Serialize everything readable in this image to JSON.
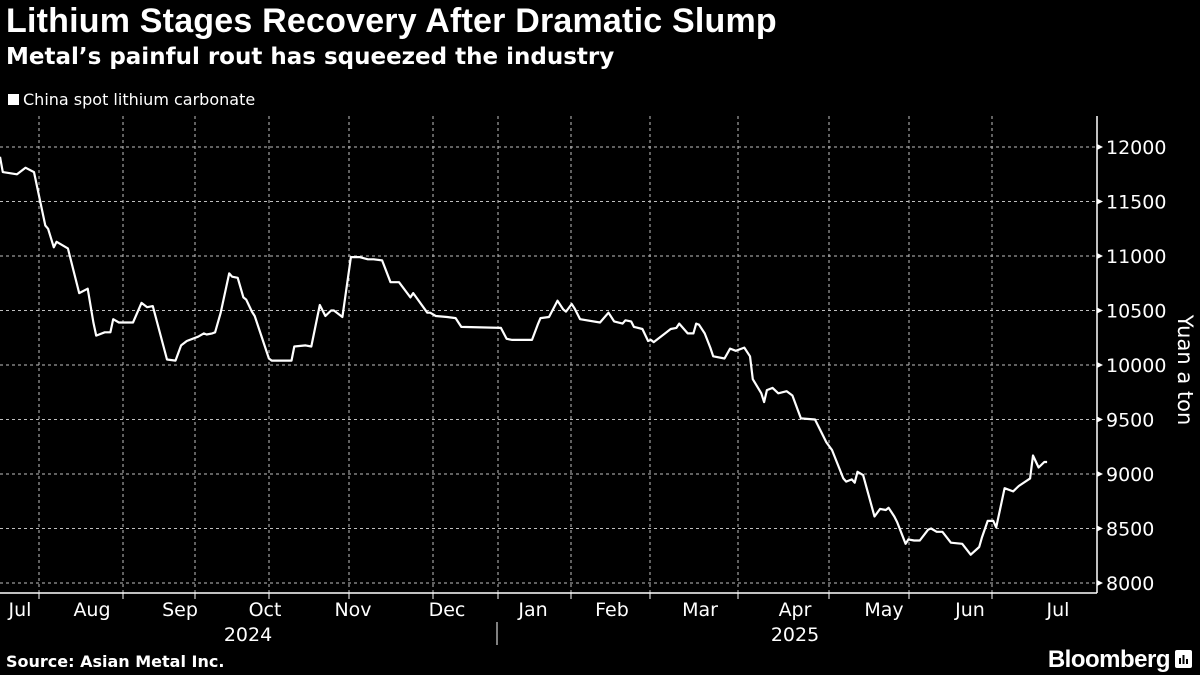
{
  "header": {
    "title": "Lithium Stages Recovery After Dramatic Slump",
    "subtitle": "Metal’s painful rout has squeezed the industry"
  },
  "footer": {
    "source": "Source: Asian Metal Inc.",
    "logo": "Bloomberg",
    "logo_icon": "chart-bubble-icon"
  },
  "colors": {
    "background": "#000000",
    "line": "#ffffff",
    "grid": "#bfbfbf"
  },
  "chart_data": {
    "type": "line",
    "title": "Lithium Stages Recovery After Dramatic Slump",
    "subtitle": "Metal’s painful rout has squeezed the industry",
    "ylabel": "Yuan a ton",
    "xlabel": "",
    "ylim": [
      8000,
      12000
    ],
    "y_ticks": [
      "12000",
      "11500",
      "11000",
      "10500",
      "10000",
      "9500",
      "9000",
      "8500",
      "8000"
    ],
    "y_axis_side": "right",
    "x_ticks": [
      "Jul",
      "Aug",
      "Sep",
      "Oct",
      "Nov",
      "Dec",
      "Jan",
      "Feb",
      "Mar",
      "Apr",
      "May",
      "Jun",
      "Jul"
    ],
    "x_years": [
      "2024",
      "2025"
    ],
    "grid": true,
    "legend_position": "top-left",
    "series": [
      {
        "name": "China spot lithium carbonate",
        "color": "#ffffff",
        "points": [
          [
            "2024-07-05",
            11910
          ],
          [
            "2024-07-06",
            11770
          ],
          [
            "2024-07-11",
            11750
          ],
          [
            "2024-07-14",
            11810
          ],
          [
            "2024-07-17",
            11770
          ],
          [
            "2024-07-21",
            11280
          ],
          [
            "2024-07-22",
            11250
          ],
          [
            "2024-07-24",
            11080
          ],
          [
            "2024-07-25",
            11130
          ],
          [
            "2024-07-29",
            11070
          ],
          [
            "2024-08-02",
            10660
          ],
          [
            "2024-08-05",
            10700
          ],
          [
            "2024-08-07",
            10390
          ],
          [
            "2024-08-08",
            10270
          ],
          [
            "2024-08-11",
            10300
          ],
          [
            "2024-08-13",
            10300
          ],
          [
            "2024-08-14",
            10420
          ],
          [
            "2024-08-16",
            10390
          ],
          [
            "2024-08-21",
            10390
          ],
          [
            "2024-08-24",
            10570
          ],
          [
            "2024-08-26",
            10530
          ],
          [
            "2024-08-28",
            10540
          ],
          [
            "2024-09-02",
            10050
          ],
          [
            "2024-09-05",
            10040
          ],
          [
            "2024-09-07",
            10180
          ],
          [
            "2024-09-09",
            10220
          ],
          [
            "2024-09-13",
            10260
          ],
          [
            "2024-09-15",
            10290
          ],
          [
            "2024-09-16",
            10280
          ],
          [
            "2024-09-18",
            10290
          ],
          [
            "2024-09-19",
            10300
          ],
          [
            "2024-09-21",
            10480
          ],
          [
            "2024-09-24",
            10840
          ],
          [
            "2024-09-25",
            10810
          ],
          [
            "2024-09-27",
            10800
          ],
          [
            "2024-09-29",
            10620
          ],
          [
            "2024-09-30",
            10600
          ],
          [
            "2024-10-02",
            10490
          ],
          [
            "2024-10-03",
            10450
          ],
          [
            "2024-10-08",
            10060
          ],
          [
            "2024-10-09",
            10040
          ],
          [
            "2024-10-14",
            10040
          ],
          [
            "2024-10-16",
            10040
          ],
          [
            "2024-10-17",
            10170
          ],
          [
            "2024-10-21",
            10180
          ],
          [
            "2024-10-23",
            10170
          ],
          [
            "2024-10-26",
            10550
          ],
          [
            "2024-10-28",
            10450
          ],
          [
            "2024-10-30",
            10500
          ],
          [
            "2024-10-31",
            10500
          ],
          [
            "2024-11-03",
            10440
          ],
          [
            "2024-11-06",
            10990
          ],
          [
            "2024-11-09",
            10990
          ],
          [
            "2024-11-12",
            10970
          ],
          [
            "2024-11-14",
            10970
          ],
          [
            "2024-11-17",
            10960
          ],
          [
            "2024-11-20",
            10760
          ],
          [
            "2024-11-23",
            10760
          ],
          [
            "2024-11-27",
            10620
          ],
          [
            "2024-11-28",
            10660
          ],
          [
            "2024-12-03",
            10480
          ],
          [
            "2024-12-04",
            10480
          ],
          [
            "2024-12-06",
            10450
          ],
          [
            "2024-12-10",
            10440
          ],
          [
            "2024-12-13",
            10430
          ],
          [
            "2024-12-15",
            10350
          ],
          [
            "2024-12-29",
            10340
          ],
          [
            "2024-12-31",
            10240
          ],
          [
            "2025-01-02",
            10230
          ],
          [
            "2025-01-09",
            10230
          ],
          [
            "2025-01-11",
            10370
          ],
          [
            "2025-01-12",
            10430
          ],
          [
            "2025-01-15",
            10440
          ],
          [
            "2025-01-18",
            10590
          ],
          [
            "2025-01-20",
            10510
          ],
          [
            "2025-01-21",
            10490
          ],
          [
            "2025-01-23",
            10560
          ],
          [
            "2025-01-24",
            10520
          ],
          [
            "2025-01-26",
            10420
          ],
          [
            "2025-02-02",
            10390
          ],
          [
            "2025-02-05",
            10480
          ],
          [
            "2025-02-07",
            10400
          ],
          [
            "2025-02-10",
            10380
          ],
          [
            "2025-02-11",
            10410
          ],
          [
            "2025-02-13",
            10400
          ],
          [
            "2025-02-14",
            10350
          ],
          [
            "2025-02-17",
            10330
          ],
          [
            "2025-02-19",
            10220
          ],
          [
            "2025-02-20",
            10230
          ],
          [
            "2025-02-21",
            10210
          ],
          [
            "2025-02-25",
            10290
          ],
          [
            "2025-02-27",
            10330
          ],
          [
            "2025-03-01",
            10340
          ],
          [
            "2025-03-02",
            10380
          ],
          [
            "2025-03-05",
            10290
          ],
          [
            "2025-03-07",
            10290
          ],
          [
            "2025-03-08",
            10380
          ],
          [
            "2025-03-09",
            10370
          ],
          [
            "2025-03-11",
            10290
          ],
          [
            "2025-03-13",
            10160
          ],
          [
            "2025-03-14",
            10080
          ],
          [
            "2025-03-18",
            10060
          ],
          [
            "2025-03-20",
            10150
          ],
          [
            "2025-03-22",
            10130
          ],
          [
            "2025-03-25",
            10160
          ],
          [
            "2025-03-27",
            10080
          ],
          [
            "2025-03-28",
            9870
          ],
          [
            "2025-03-31",
            9740
          ],
          [
            "2025-04-01",
            9660
          ],
          [
            "2025-04-02",
            9770
          ],
          [
            "2025-04-04",
            9790
          ],
          [
            "2025-04-06",
            9740
          ],
          [
            "2025-04-09",
            9760
          ],
          [
            "2025-04-11",
            9720
          ],
          [
            "2025-04-14",
            9510
          ],
          [
            "2025-04-19",
            9500
          ],
          [
            "2025-04-23",
            9290
          ],
          [
            "2025-04-25",
            9220
          ],
          [
            "2025-04-29",
            8960
          ],
          [
            "2025-04-30",
            8930
          ],
          [
            "2025-05-02",
            8950
          ],
          [
            "2025-05-03",
            8920
          ],
          [
            "2025-05-04",
            9020
          ],
          [
            "2025-05-06",
            8990
          ],
          [
            "2025-05-10",
            8610
          ],
          [
            "2025-05-12",
            8680
          ],
          [
            "2025-05-14",
            8670
          ],
          [
            "2025-05-15",
            8690
          ],
          [
            "2025-05-17",
            8610
          ],
          [
            "2025-05-18",
            8560
          ],
          [
            "2025-05-21",
            8360
          ],
          [
            "2025-05-22",
            8400
          ],
          [
            "2025-05-24",
            8390
          ],
          [
            "2025-05-26",
            8390
          ],
          [
            "2025-05-29",
            8490
          ],
          [
            "2025-05-30",
            8500
          ],
          [
            "2025-06-01",
            8470
          ],
          [
            "2025-06-03",
            8470
          ],
          [
            "2025-06-06",
            8370
          ],
          [
            "2025-06-10",
            8360
          ],
          [
            "2025-06-13",
            8260
          ],
          [
            "2025-06-16",
            8330
          ],
          [
            "2025-06-17",
            8420
          ],
          [
            "2025-06-19",
            8570
          ],
          [
            "2025-06-21",
            8570
          ],
          [
            "2025-06-22",
            8510
          ],
          [
            "2025-06-25",
            8870
          ],
          [
            "2025-06-28",
            8840
          ],
          [
            "2025-06-30",
            8890
          ],
          [
            "2025-07-04",
            8960
          ],
          [
            "2025-07-05",
            9170
          ],
          [
            "2025-07-07",
            9060
          ],
          [
            "2025-07-09",
            9110
          ],
          [
            "2025-07-10",
            9110
          ]
        ]
      }
    ]
  }
}
